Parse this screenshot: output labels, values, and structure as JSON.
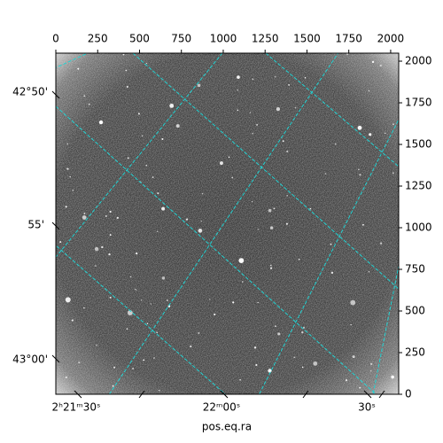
{
  "chart_data": {
    "type": "image",
    "xlabel": "pos.eq.ra",
    "xlim": [
      0,
      2048
    ],
    "ylim": [
      0,
      2048
    ],
    "xticks": [
      0,
      250,
      500,
      750,
      1000,
      1250,
      1500,
      1750,
      2000
    ],
    "yticks": [
      0,
      250,
      500,
      750,
      1000,
      1250,
      1500,
      1750,
      2000
    ],
    "ra_ticks": [
      "2ʰ21ᵐ30ˢ",
      "22ᵐ00ˢ",
      "30ˢ"
    ],
    "dec_ticks": [
      "42°50'",
      "55'",
      "43°00'"
    ]
  }
}
